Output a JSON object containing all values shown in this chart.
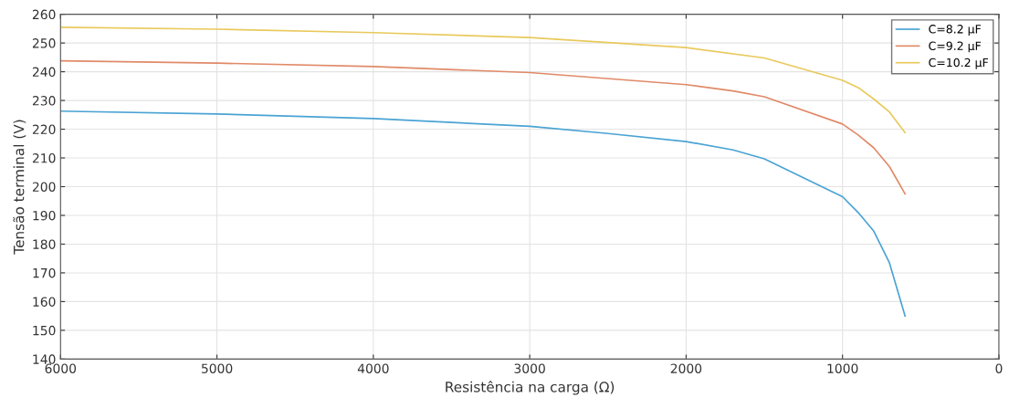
{
  "chart_data": {
    "type": "line",
    "xlabel": "Resistência na carga (Ω)",
    "ylabel": "Tensão terminal (V)",
    "xlim": [
      6000,
      0
    ],
    "xticks": [
      6000,
      5000,
      4000,
      3000,
      2000,
      1000,
      0
    ],
    "ylim": [
      140,
      260
    ],
    "yticks": [
      140,
      150,
      160,
      170,
      180,
      190,
      200,
      210,
      220,
      230,
      240,
      250,
      260
    ],
    "grid": true,
    "legend": "top right",
    "line_style": "solid",
    "marker": "none",
    "series": [
      {
        "name": "C=8.2 µF",
        "color": "#4aa3d4",
        "x": [
          6000,
          5000,
          4000,
          3000,
          2500,
          2000,
          1700,
          1500,
          1000,
          900,
          800,
          700,
          600
        ],
        "values": [
          226.3,
          225.3,
          223.7,
          221,
          218.5,
          215.7,
          212.8,
          209.7,
          196.5,
          191,
          184.5,
          173.5,
          155
        ]
      },
      {
        "name": "C=9.2 µF",
        "color": "#e08a68",
        "x": [
          6000,
          5000,
          4000,
          3000,
          2000,
          1700,
          1500,
          1000,
          900,
          800,
          700,
          600
        ],
        "values": [
          243.8,
          243,
          241.8,
          239.7,
          235.5,
          233.3,
          231.3,
          221.8,
          218,
          213.5,
          207,
          197.5
        ]
      },
      {
        "name": "C=10.2 µF",
        "color": "#e9c95c",
        "x": [
          6000,
          5000,
          4000,
          3000,
          2000,
          1500,
          1000,
          900,
          800,
          700,
          600
        ],
        "values": [
          255.5,
          254.8,
          253.6,
          251.9,
          248.4,
          244.8,
          237,
          234.5,
          230.5,
          226,
          218.8
        ]
      }
    ]
  }
}
